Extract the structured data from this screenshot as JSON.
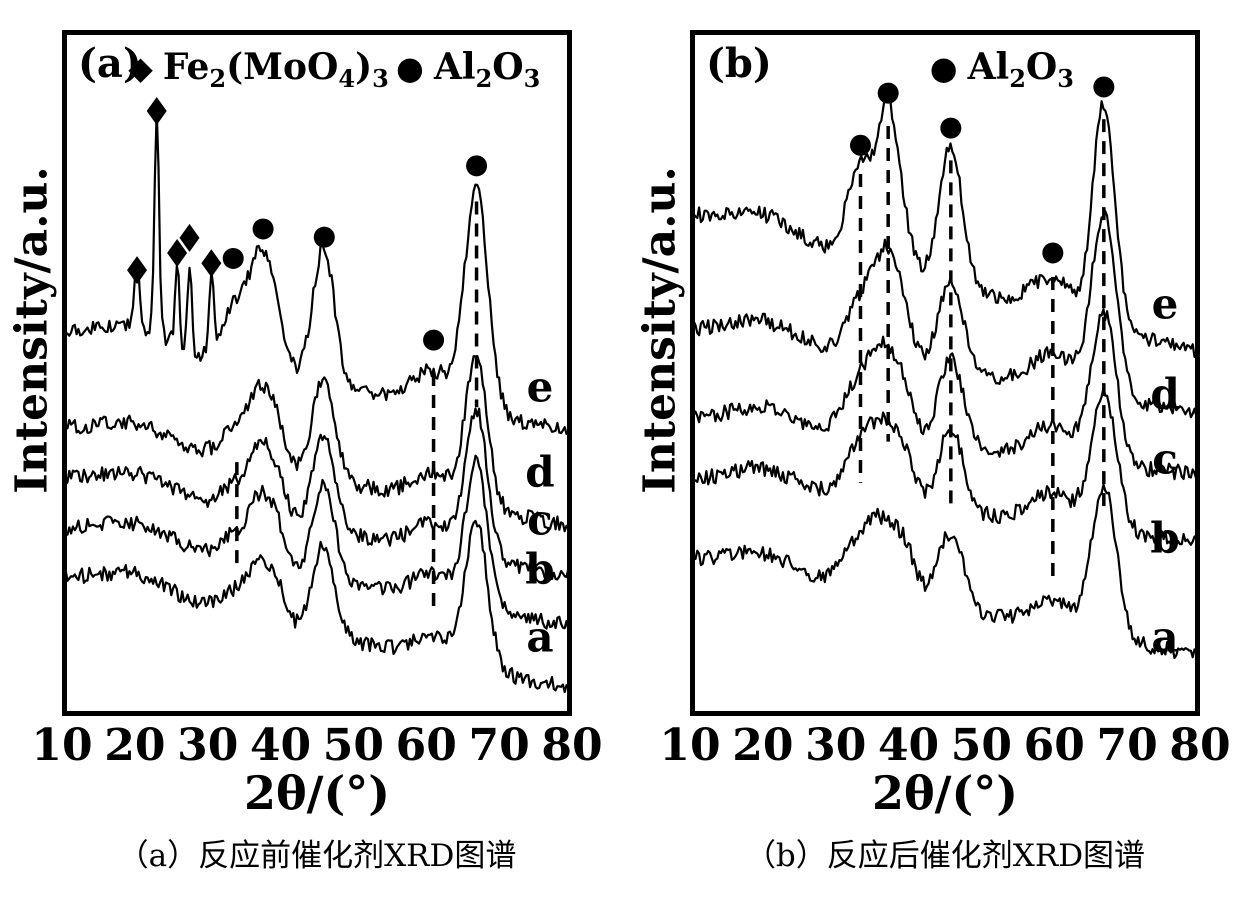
{
  "figure": {
    "background": "#ffffff",
    "foreground": "#000000"
  },
  "chart_data": [
    {
      "type": "line",
      "panel_label": "(a)",
      "caption": "（a）反应前催化剂XRD图谱",
      "xlabel": "2θ/(°)",
      "ylabel": "Intensity/a.u.",
      "xlim": [
        10,
        80
      ],
      "xticks": [
        10,
        20,
        30,
        40,
        50,
        60,
        70,
        80
      ],
      "grid": false,
      "legend_position": "top-inside",
      "legend": [
        {
          "marker": "diamond",
          "label": "Fe2(MoO4)3",
          "x": 0.13
        },
        {
          "marker": "circle",
          "label": "Al2O3",
          "x": 0.655
        }
      ],
      "series": [
        {
          "name": "a",
          "baseline": 0.8,
          "tilt": 0.16,
          "noise": 0.011,
          "peaks": [
            {
              "c": 20,
              "w": 5,
              "h": 0.03
            },
            {
              "c": 33.5,
              "w": 2,
              "h": 0.03
            },
            {
              "c": 37.4,
              "w": 1.8,
              "h": 0.08
            },
            {
              "c": 39.8,
              "w": 1.2,
              "h": 0.03
            },
            {
              "c": 45.9,
              "w": 1.5,
              "h": 0.13
            },
            {
              "c": 61,
              "w": 2.8,
              "h": 0.035
            },
            {
              "c": 66.9,
              "w": 1.5,
              "h": 0.21
            }
          ]
        },
        {
          "name": "b",
          "baseline": 0.729,
          "tilt": 0.14,
          "noise": 0.011,
          "peaks": [
            {
              "c": 20,
              "w": 5,
              "h": 0.03
            },
            {
              "c": 33.5,
              "w": 2,
              "h": 0.035
            },
            {
              "c": 37.4,
              "w": 1.7,
              "h": 0.1
            },
            {
              "c": 39.8,
              "w": 1.2,
              "h": 0.035
            },
            {
              "c": 45.9,
              "w": 1.5,
              "h": 0.14
            },
            {
              "c": 61,
              "w": 2.8,
              "h": 0.04
            },
            {
              "c": 66.9,
              "w": 1.5,
              "h": 0.21
            }
          ]
        },
        {
          "name": "c",
          "baseline": 0.656,
          "tilt": 0.14,
          "noise": 0.011,
          "peaks": [
            {
              "c": 20,
              "w": 5,
              "h": 0.03
            },
            {
              "c": 33.5,
              "w": 2,
              "h": 0.035
            },
            {
              "c": 37.4,
              "w": 1.7,
              "h": 0.1
            },
            {
              "c": 39.8,
              "w": 1.2,
              "h": 0.035
            },
            {
              "c": 45.9,
              "w": 1.5,
              "h": 0.14
            },
            {
              "c": 61,
              "w": 2.8,
              "h": 0.04
            },
            {
              "c": 66.9,
              "w": 1.5,
              "h": 0.21
            }
          ]
        },
        {
          "name": "d",
          "baseline": 0.583,
          "tilt": 0.14,
          "noise": 0.011,
          "peaks": [
            {
              "c": 20,
              "w": 5,
              "h": 0.03
            },
            {
              "c": 33.5,
              "w": 2,
              "h": 0.04
            },
            {
              "c": 37.4,
              "w": 1.7,
              "h": 0.11
            },
            {
              "c": 39.8,
              "w": 1.2,
              "h": 0.035
            },
            {
              "c": 45.9,
              "w": 1.5,
              "h": 0.15
            },
            {
              "c": 61,
              "w": 2.8,
              "h": 0.04
            },
            {
              "c": 66.9,
              "w": 1.5,
              "h": 0.22
            }
          ]
        },
        {
          "name": "e",
          "baseline": 0.445,
          "tilt": 0.14,
          "noise": 0.011,
          "peaks": [
            {
              "c": 20,
              "w": 5,
              "h": 0.035
            },
            {
              "c": 20.3,
              "w": 0.3,
              "h": 0.1
            },
            {
              "c": 23,
              "w": 0.32,
              "h": 0.32
            },
            {
              "c": 25.8,
              "w": 0.3,
              "h": 0.12
            },
            {
              "c": 27.5,
              "w": 0.3,
              "h": 0.13
            },
            {
              "c": 30.5,
              "w": 0.3,
              "h": 0.11
            },
            {
              "c": 33.5,
              "w": 1.8,
              "h": 0.08
            },
            {
              "c": 37.4,
              "w": 1.7,
              "h": 0.17
            },
            {
              "c": 39.8,
              "w": 1.2,
              "h": 0.04
            },
            {
              "c": 45.9,
              "w": 1.5,
              "h": 0.2
            },
            {
              "c": 61,
              "w": 2.8,
              "h": 0.05
            },
            {
              "c": 66.9,
              "w": 1.6,
              "h": 0.32
            }
          ]
        }
      ],
      "series_labels": [
        {
          "text": "e",
          "x": 75.6,
          "y": 0.52
        },
        {
          "text": "d",
          "x": 75.6,
          "y": 0.645
        },
        {
          "text": "c",
          "x": 75.6,
          "y": 0.715
        },
        {
          "text": "b",
          "x": 75.6,
          "y": 0.785
        },
        {
          "text": "a",
          "x": 75.6,
          "y": 0.885
        }
      ],
      "markers": [
        {
          "type": "diamond",
          "x": 20.3,
          "y": 0.35
        },
        {
          "type": "diamond",
          "x": 23.0,
          "y": 0.118
        },
        {
          "type": "diamond",
          "x": 25.8,
          "y": 0.325
        },
        {
          "type": "diamond",
          "x": 27.5,
          "y": 0.303
        },
        {
          "type": "diamond",
          "x": 30.5,
          "y": 0.34
        },
        {
          "type": "circle",
          "x": 33.5,
          "y": 0.333
        },
        {
          "type": "circle",
          "x": 37.6,
          "y": 0.29
        },
        {
          "type": "circle",
          "x": 46.0,
          "y": 0.302
        },
        {
          "type": "circle",
          "x": 61.0,
          "y": 0.452
        },
        {
          "type": "circle",
          "x": 66.9,
          "y": 0.198
        }
      ],
      "guides": [
        {
          "x": 34.0,
          "y1": 0.63,
          "y2": 0.79
        },
        {
          "x": 61.0,
          "y1": 0.5,
          "y2": 0.85
        },
        {
          "x": 66.9,
          "y1": 0.25,
          "y2": 0.55
        }
      ]
    },
    {
      "type": "line",
      "panel_label": "(b)",
      "caption": "（b）反应后催化剂XRD图谱",
      "xlabel": "2θ/(°)",
      "ylabel": "Intensity/a.u.",
      "xlim": [
        10,
        80
      ],
      "xticks": [
        10,
        20,
        30,
        40,
        50,
        60,
        70,
        80
      ],
      "grid": false,
      "legend_position": "top-inside",
      "legend": [
        {
          "marker": "circle",
          "label": "Al2O3",
          "x": 0.47
        }
      ],
      "series": [
        {
          "name": "a",
          "baseline": 0.772,
          "tilt": 0.14,
          "noise": 0.011,
          "peaks": [
            {
              "c": 20,
              "w": 4.5,
              "h": 0.03
            },
            {
              "c": 33.4,
              "w": 2.5,
              "h": 0.06
            },
            {
              "c": 37.2,
              "w": 2.5,
              "h": 0.09
            },
            {
              "c": 39.8,
              "w": 1.2,
              "h": 0.03
            },
            {
              "c": 45.8,
              "w": 1.7,
              "h": 0.11
            },
            {
              "c": 59.8,
              "w": 3,
              "h": 0.04
            },
            {
              "c": 66.8,
              "w": 1.7,
              "h": 0.22
            }
          ]
        },
        {
          "name": "b",
          "baseline": 0.656,
          "tilt": 0.09,
          "noise": 0.011,
          "peaks": [
            {
              "c": 20,
              "w": 4.5,
              "h": 0.03
            },
            {
              "c": 33.4,
              "w": 2.3,
              "h": 0.07
            },
            {
              "c": 37.2,
              "w": 2.2,
              "h": 0.1
            },
            {
              "c": 39.8,
              "w": 1.2,
              "h": 0.03
            },
            {
              "c": 45.8,
              "w": 1.7,
              "h": 0.12
            },
            {
              "c": 59.8,
              "w": 3,
              "h": 0.045
            },
            {
              "c": 66.8,
              "w": 1.7,
              "h": 0.2
            }
          ]
        },
        {
          "name": "c",
          "baseline": 0.568,
          "tilt": 0.08,
          "noise": 0.011,
          "peaks": [
            {
              "c": 20,
              "w": 4.5,
              "h": 0.03
            },
            {
              "c": 33.4,
              "w": 2.2,
              "h": 0.08
            },
            {
              "c": 37.2,
              "w": 2.0,
              "h": 0.12
            },
            {
              "c": 39.8,
              "w": 1.2,
              "h": 0.03
            },
            {
              "c": 45.8,
              "w": 1.7,
              "h": 0.13
            },
            {
              "c": 59.8,
              "w": 3,
              "h": 0.05
            },
            {
              "c": 66.8,
              "w": 1.7,
              "h": 0.22
            }
          ]
        },
        {
          "name": "d",
          "baseline": 0.437,
          "tilt": 0.12,
          "noise": 0.011,
          "peaks": [
            {
              "c": 20,
              "w": 4.5,
              "h": 0.03
            },
            {
              "c": 33.4,
              "w": 2.0,
              "h": 0.08
            },
            {
              "c": 37.2,
              "w": 1.8,
              "h": 0.15
            },
            {
              "c": 39.8,
              "w": 1.2,
              "h": 0.03
            },
            {
              "c": 45.8,
              "w": 1.7,
              "h": 0.13
            },
            {
              "c": 59.8,
              "w": 3,
              "h": 0.05
            },
            {
              "c": 66.8,
              "w": 1.7,
              "h": 0.26
            }
          ]
        },
        {
          "name": "e",
          "baseline": 0.27,
          "tilt": 0.2,
          "noise": 0.011,
          "peaks": [
            {
              "c": 20,
              "w": 4.5,
              "h": 0.03
            },
            {
              "c": 33.4,
              "w": 1.8,
              "h": 0.14
            },
            {
              "c": 37.2,
              "w": 1.4,
              "h": 0.23
            },
            {
              "c": 39.8,
              "w": 1.2,
              "h": 0.04
            },
            {
              "c": 45.8,
              "w": 1.6,
              "h": 0.2
            },
            {
              "c": 59.8,
              "w": 3,
              "h": 0.05
            },
            {
              "c": 66.8,
              "w": 1.5,
              "h": 0.32
            }
          ]
        }
      ],
      "series_labels": [
        {
          "text": "e",
          "x": 75.2,
          "y": 0.4
        },
        {
          "text": "d",
          "x": 75.2,
          "y": 0.53
        },
        {
          "text": "c",
          "x": 75.2,
          "y": 0.625
        },
        {
          "text": "b",
          "x": 75.2,
          "y": 0.74
        },
        {
          "text": "a",
          "x": 75.2,
          "y": 0.885
        }
      ],
      "markers": [
        {
          "type": "circle",
          "x": 33.4,
          "y": 0.168
        },
        {
          "type": "circle",
          "x": 37.2,
          "y": 0.092
        },
        {
          "type": "circle",
          "x": 45.8,
          "y": 0.143
        },
        {
          "type": "circle",
          "x": 59.8,
          "y": 0.325
        },
        {
          "type": "circle",
          "x": 66.8,
          "y": 0.083
        }
      ],
      "guides": [
        {
          "x": 33.4,
          "y1": 0.21,
          "y2": 0.66
        },
        {
          "x": 37.2,
          "y1": 0.14,
          "y2": 0.6
        },
        {
          "x": 45.8,
          "y1": 0.19,
          "y2": 0.7
        },
        {
          "x": 59.8,
          "y1": 0.36,
          "y2": 0.8
        },
        {
          "x": 66.8,
          "y1": 0.13,
          "y2": 0.7
        }
      ]
    }
  ]
}
